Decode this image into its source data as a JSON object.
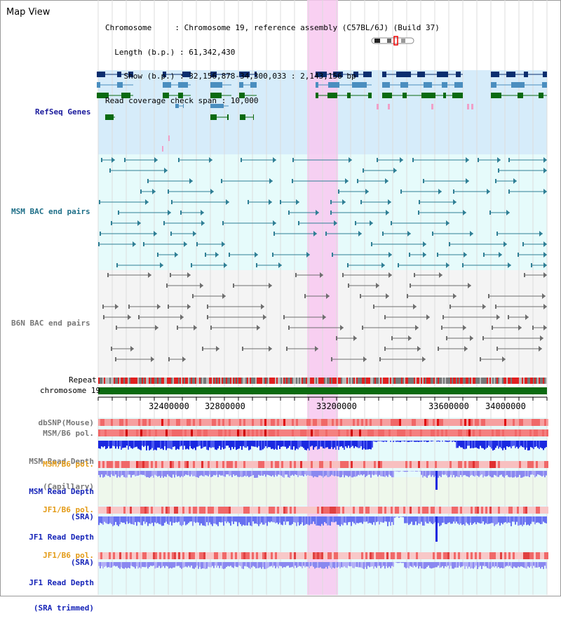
{
  "title": "Map View",
  "info_lines": [
    "Chromosome     : Chromosome 19, reference assembly (C57BL/6J) (Build 37)",
    "  Length (b.p.) : 61,342,430",
    "    Show (b.p.) : 32,156,878-34,300,033 : 2,143,156 bp",
    "Read coverage check span : 10,000"
  ],
  "tracks": {
    "refseq": "RefSeq Genes",
    "msm_bac": "MSM BAC end pairs",
    "b6n_bac": "B6N BAC end pairs",
    "repeat": "Repeat",
    "chromosome": "chromosome 19",
    "dbsnp": "dbSNP(Mouse)",
    "msm_b6_pol": "MSM/B6 pol.",
    "msm_depth_cap_1": "MSM Read Depth",
    "msm_depth_cap_2": "(Capillary)",
    "msm_b6_pol_2": "MSM/B6 pol.",
    "msm_depth_sra_1": "MSM Read Depth",
    "msm_depth_sra_2": "(SRA)",
    "jf1_b6_pol": "JF1/B6 pol.",
    "jf1_depth_sra_1": "JF1 Read Depth",
    "jf1_depth_sra_2": "(SRA)",
    "jf1_b6_pol_2": "JF1/B6 pol.",
    "jf1_depth_trim_1": "JF1 Read Depth",
    "jf1_depth_trim_2": "(SRA trimmed)"
  },
  "axis_ticks": [
    "32400000",
    "32800000",
    "33200000",
    "33600000",
    "34000000"
  ],
  "colors": {
    "highlight": "#f8c8f0",
    "refseq_bg": "#d6ecfa",
    "msm_bg": "#e6fbfb",
    "b6n_bg": "#f4f4f4",
    "gene_dark": "#0b2e6e",
    "gene_mid": "#4a8ebf",
    "gene_green": "#0a6a10",
    "chromosome_green": "#0a6a10",
    "depth_blue": "#1a28e0",
    "depth_light": "#8a88f0",
    "pol_red": "#e84040"
  }
}
